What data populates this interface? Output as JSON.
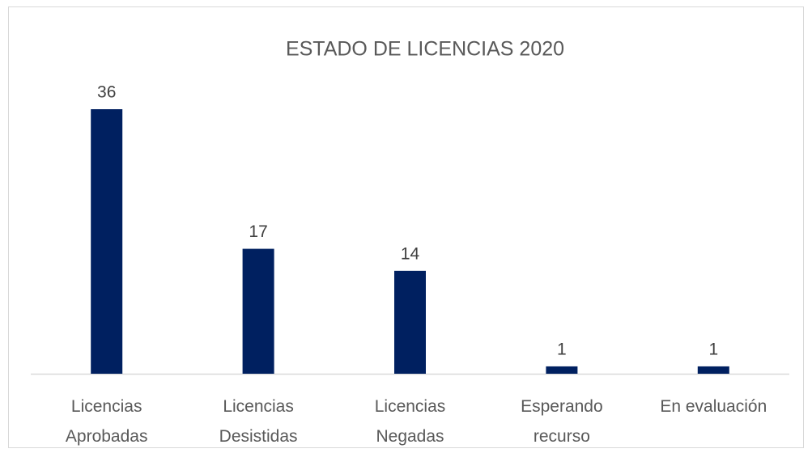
{
  "chart_data": {
    "type": "bar",
    "title": "ESTADO DE LICENCIAS 2020",
    "categories": [
      "Licencias\nAprobadas",
      "Licencias\nDesistidas",
      "Licencias\nNegadas",
      "Esperando\nrecurso",
      "En evaluación"
    ],
    "values": [
      36,
      17,
      14,
      1,
      1
    ],
    "color": "#002060"
  }
}
